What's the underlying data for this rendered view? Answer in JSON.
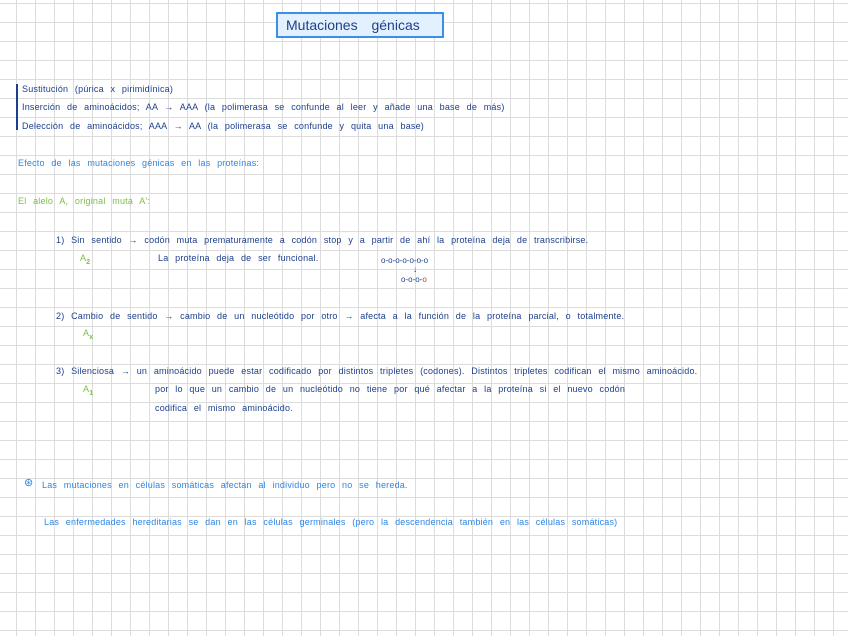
{
  "title": "Mutaciones génicas",
  "types": [
    "Sustitución (púrica x pirimidínica)",
    "Inserción de aminoácidos; AA → AAA   (la polimerasa se confunde al leer y añade una base de más)",
    "Delección de aminoácidos; AAA → AA   (la polimerasa se confunde y quita una base)"
  ],
  "effects_heading": "Efecto de las mutaciones génicas en las proteínas:",
  "allele_heading": "El alelo A, original muta A':",
  "items": [
    {
      "line1": "1) Sin sentido → codón muta prematuramente a codón stop y a partir de ahí la proteína deja de transcribirse.",
      "allele": "A",
      "sub": "2",
      "line2": "La proteína deja de ser funcional.",
      "chain_top": "o-o-o-o-o-o-o",
      "chain_arrow": "↓",
      "chain_bottom": "o-o-o-",
      "chain_stop": "o"
    },
    {
      "line1": "2) Cambio de sentido → cambio de un nucleótido por otro → afecta a la función de la proteína parcial, o totalmente.",
      "allele": "A",
      "sub": "x"
    },
    {
      "line1": "3) Silenciosa → un aminoácido puede estar codificado por distintos tripletes (codones). Distintos tripletes codifican el mismo aminoácido.",
      "allele": "A",
      "sub": "1",
      "line2": "por lo que un cambio de un nucleótido no tiene por qué afectar a la proteína si el nuevo codón",
      "line3": "codifica el mismo aminoácido."
    }
  ],
  "note_icon": "asterisk-circle-icon",
  "note1": "Las mutaciones en células somáticas afectan al individuo pero no se hereda.",
  "note2": "Las enfermedades hereditarias se dan en las células germinales (pero la descendencia también en las células somáticas)",
  "colors": {
    "dark": "#1c3f8c",
    "bright": "#2b86e6",
    "green": "#7cc142",
    "stop": "#e23030"
  }
}
